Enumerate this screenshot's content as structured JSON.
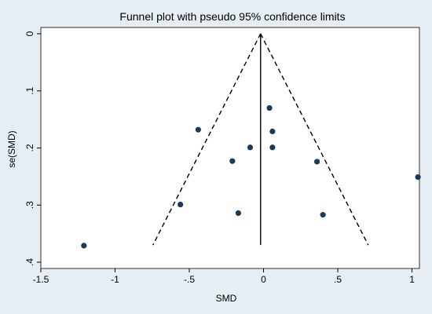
{
  "chart_data": {
    "type": "scatter",
    "title": "Funnel plot with pseudo 95% confidence limits",
    "xlabel": "SMD",
    "ylabel": "se(SMD)",
    "xlim": [
      -1.5,
      1.05
    ],
    "ylim": [
      0,
      0.4
    ],
    "y_reversed": true,
    "x_ticks": [
      -1.5,
      -1,
      -0.5,
      0,
      0.5,
      1
    ],
    "x_tick_labels": [
      "-1.5",
      "-1",
      "-.5",
      "0",
      ".5",
      "1"
    ],
    "y_ticks": [
      0,
      0.1,
      0.2,
      0.3,
      0.4
    ],
    "y_tick_labels": [
      "0",
      ".1",
      ".2",
      ".3",
      ".4"
    ],
    "grid": false,
    "pooled_estimate": -0.02,
    "funnel_max_se": 0.37,
    "points": [
      {
        "x": 0.04,
        "y": 0.13
      },
      {
        "x": 0.06,
        "y": 0.171
      },
      {
        "x": -0.44,
        "y": 0.168
      },
      {
        "x": -0.09,
        "y": 0.199
      },
      {
        "x": 0.06,
        "y": 0.199
      },
      {
        "x": -0.21,
        "y": 0.223
      },
      {
        "x": 0.36,
        "y": 0.224
      },
      {
        "x": 1.04,
        "y": 0.251
      },
      {
        "x": -0.56,
        "y": 0.299
      },
      {
        "x": -0.17,
        "y": 0.314
      },
      {
        "x": 0.4,
        "y": 0.317
      },
      {
        "x": -1.21,
        "y": 0.371
      }
    ],
    "colors": {
      "background": "#e7eef3",
      "plot_area": "#ffffff",
      "marker": "#1a3a5c",
      "line": "#000000"
    }
  }
}
